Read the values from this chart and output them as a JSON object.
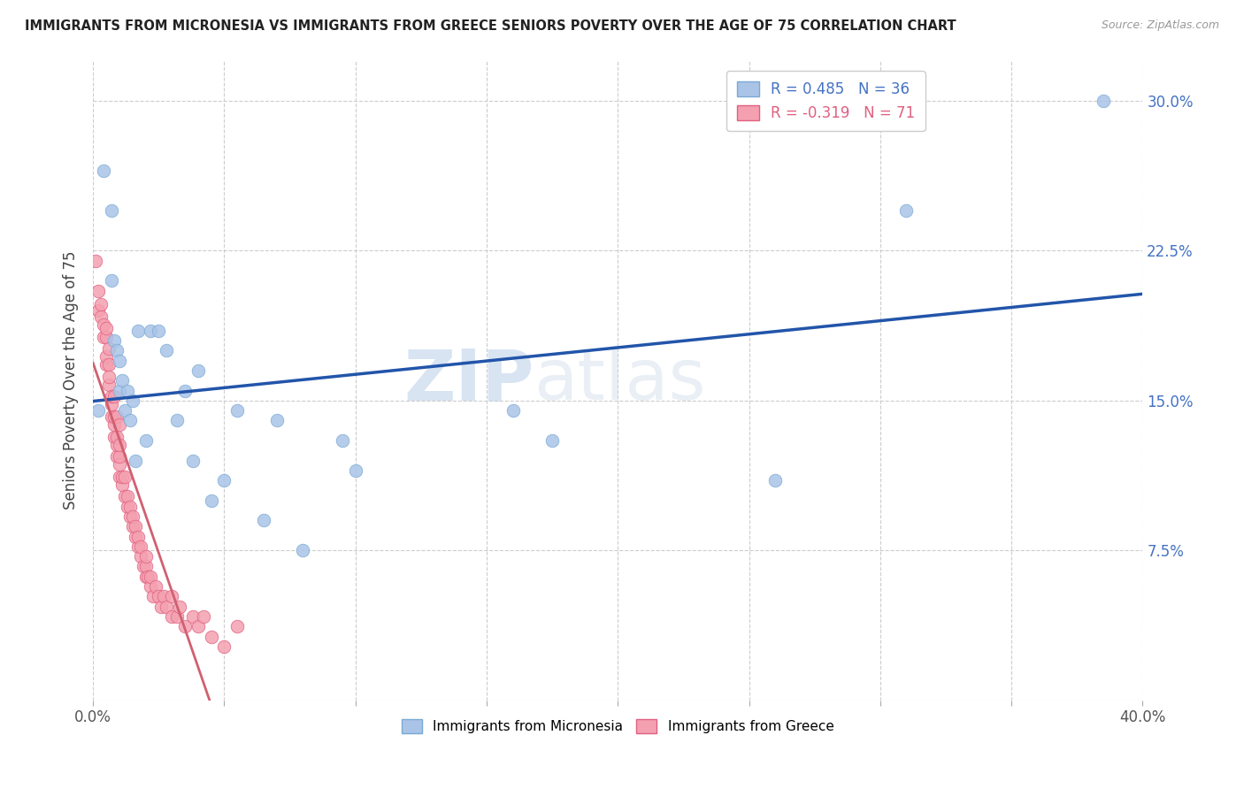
{
  "title": "IMMIGRANTS FROM MICRONESIA VS IMMIGRANTS FROM GREECE SENIORS POVERTY OVER THE AGE OF 75 CORRELATION CHART",
  "source": "Source: ZipAtlas.com",
  "ylabel": "Seniors Poverty Over the Age of 75",
  "xlim": [
    0.0,
    0.4
  ],
  "ylim": [
    0.0,
    0.32
  ],
  "xticks": [
    0.0,
    0.05,
    0.1,
    0.15,
    0.2,
    0.25,
    0.3,
    0.35,
    0.4
  ],
  "yticks": [
    0.0,
    0.075,
    0.15,
    0.225,
    0.3
  ],
  "background_color": "#ffffff",
  "grid_color": "#cccccc",
  "micronesia_color": "#aac4e8",
  "greece_color": "#f4a0b0",
  "micronesia_edge_color": "#7aaad4",
  "greece_edge_color": "#e06080",
  "trendline_micronesia_color": "#2255aa",
  "trendline_greece_color": "#d06070",
  "legend_micronesia": "R = 0.485   N = 36",
  "legend_greece": "R = -0.319   N = 71",
  "watermark_zip": "ZIP",
  "watermark_atlas": "atlas",
  "marker_size": 110,
  "micronesia_x": [
    0.002,
    0.004,
    0.007,
    0.007,
    0.008,
    0.009,
    0.01,
    0.01,
    0.011,
    0.012,
    0.013,
    0.014,
    0.015,
    0.016,
    0.017,
    0.02,
    0.022,
    0.025,
    0.028,
    0.032,
    0.035,
    0.038,
    0.04,
    0.045,
    0.05,
    0.055,
    0.065,
    0.07,
    0.08,
    0.095,
    0.1,
    0.16,
    0.175,
    0.26,
    0.31,
    0.385
  ],
  "micronesia_y": [
    0.145,
    0.265,
    0.245,
    0.21,
    0.18,
    0.175,
    0.17,
    0.155,
    0.16,
    0.145,
    0.155,
    0.14,
    0.15,
    0.12,
    0.185,
    0.13,
    0.185,
    0.185,
    0.175,
    0.14,
    0.155,
    0.12,
    0.165,
    0.1,
    0.11,
    0.145,
    0.09,
    0.14,
    0.075,
    0.13,
    0.115,
    0.145,
    0.13,
    0.11,
    0.245,
    0.3
  ],
  "greece_x": [
    0.001,
    0.002,
    0.002,
    0.003,
    0.003,
    0.004,
    0.004,
    0.005,
    0.005,
    0.005,
    0.005,
    0.006,
    0.006,
    0.006,
    0.006,
    0.007,
    0.007,
    0.007,
    0.008,
    0.008,
    0.008,
    0.008,
    0.009,
    0.009,
    0.009,
    0.009,
    0.01,
    0.01,
    0.01,
    0.01,
    0.01,
    0.011,
    0.011,
    0.012,
    0.012,
    0.013,
    0.013,
    0.014,
    0.014,
    0.015,
    0.015,
    0.016,
    0.016,
    0.017,
    0.017,
    0.018,
    0.018,
    0.019,
    0.02,
    0.02,
    0.02,
    0.021,
    0.022,
    0.022,
    0.023,
    0.024,
    0.025,
    0.026,
    0.027,
    0.028,
    0.03,
    0.03,
    0.032,
    0.033,
    0.035,
    0.038,
    0.04,
    0.042,
    0.045,
    0.05,
    0.055
  ],
  "greece_y": [
    0.22,
    0.195,
    0.205,
    0.192,
    0.198,
    0.182,
    0.188,
    0.168,
    0.172,
    0.182,
    0.186,
    0.158,
    0.162,
    0.168,
    0.176,
    0.142,
    0.148,
    0.152,
    0.132,
    0.138,
    0.142,
    0.152,
    0.122,
    0.128,
    0.132,
    0.142,
    0.112,
    0.118,
    0.122,
    0.128,
    0.138,
    0.108,
    0.112,
    0.102,
    0.112,
    0.097,
    0.102,
    0.092,
    0.097,
    0.087,
    0.092,
    0.082,
    0.087,
    0.077,
    0.082,
    0.072,
    0.077,
    0.067,
    0.062,
    0.067,
    0.072,
    0.062,
    0.057,
    0.062,
    0.052,
    0.057,
    0.052,
    0.047,
    0.052,
    0.047,
    0.042,
    0.052,
    0.042,
    0.047,
    0.037,
    0.042,
    0.037,
    0.042,
    0.032,
    0.027,
    0.037
  ]
}
